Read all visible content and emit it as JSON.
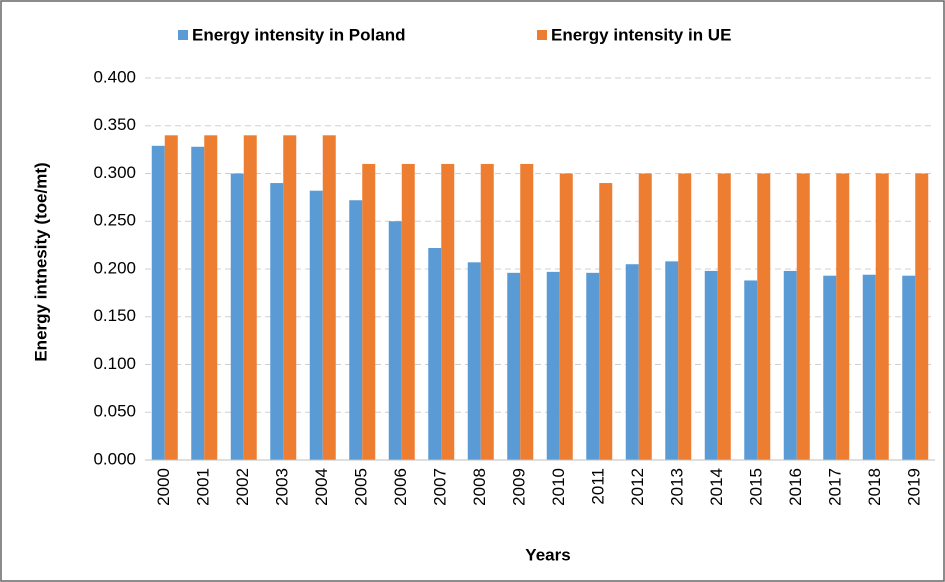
{
  "chart_data": {
    "type": "bar",
    "categories": [
      "2000",
      "2001",
      "2002",
      "2003",
      "2004",
      "2005",
      "2006",
      "2007",
      "2008",
      "2009",
      "2010",
      "2011",
      "2012",
      "2013",
      "2014",
      "2015",
      "2016",
      "2017",
      "2018",
      "2019"
    ],
    "series": [
      {
        "name": "Energy intensity in Poland",
        "color": "#5b9bd5",
        "values": [
          0.329,
          0.328,
          0.3,
          0.29,
          0.282,
          0.272,
          0.25,
          0.222,
          0.207,
          0.196,
          0.197,
          0.196,
          0.205,
          0.208,
          0.198,
          0.188,
          0.198,
          0.193,
          0.194,
          0.193
        ]
      },
      {
        "name": "Energy intensity in UE",
        "color": "#ed7d31",
        "values": [
          0.34,
          0.34,
          0.34,
          0.34,
          0.34,
          0.31,
          0.31,
          0.31,
          0.31,
          0.31,
          0.3,
          0.29,
          0.3,
          0.3,
          0.3,
          0.3,
          0.3,
          0.3,
          0.3,
          0.3
        ]
      }
    ],
    "xlabel": "Years",
    "ylabel": "Energy intnesity (toe/mt)",
    "ylim": [
      0,
      0.4
    ],
    "yticks": [
      {
        "value": 0,
        "label": "0.000"
      },
      {
        "value": 0.05,
        "label": "0.050"
      },
      {
        "value": 0.1,
        "label": "0.100"
      },
      {
        "value": 0.15,
        "label": "0.150"
      },
      {
        "value": 0.2,
        "label": "0.200"
      },
      {
        "value": 0.25,
        "label": "0.250"
      },
      {
        "value": 0.3,
        "label": "0.300"
      },
      {
        "value": 0.35,
        "label": "0.350"
      },
      {
        "value": 0.4,
        "label": "0.400"
      }
    ],
    "grid": true,
    "legend": "top"
  }
}
